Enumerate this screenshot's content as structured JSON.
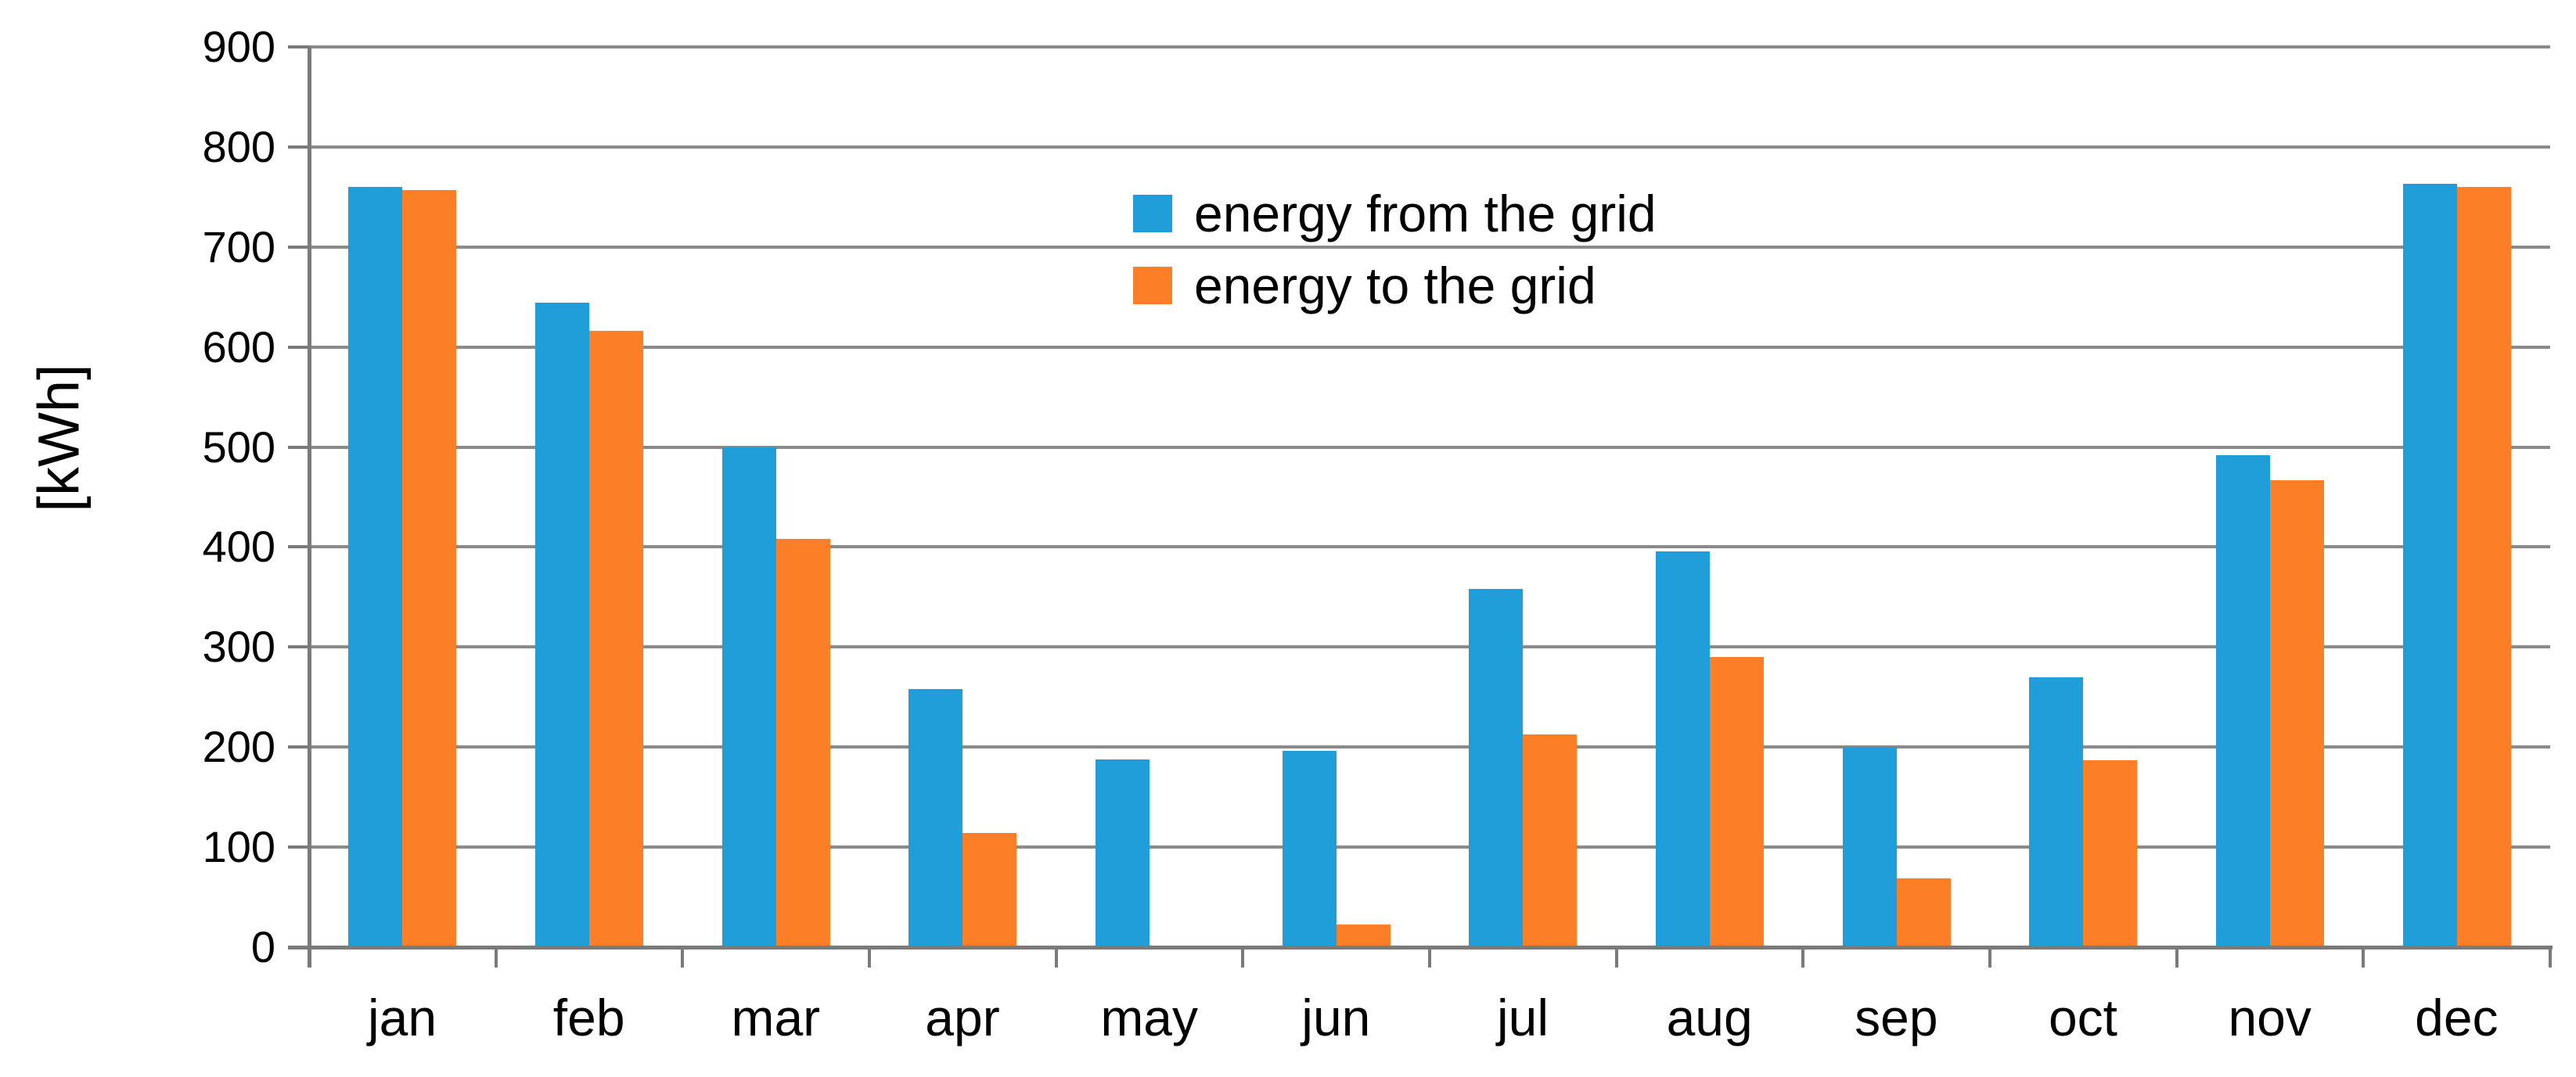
{
  "chart_data": {
    "type": "bar",
    "title": "",
    "xlabel": "",
    "ylabel": "[kWh]",
    "ylim": [
      0,
      900
    ],
    "ytick_step": 100,
    "yticks": [
      0,
      100,
      200,
      300,
      400,
      500,
      600,
      700,
      800,
      900
    ],
    "grid": "horizontal",
    "legend_position": "top-center-inside",
    "categories": [
      "jan",
      "feb",
      "mar",
      "apr",
      "may",
      "jun",
      "jul",
      "aug",
      "sep",
      "oct",
      "nov",
      "dec"
    ],
    "series": [
      {
        "name": "energy from the grid",
        "color": "#1f9ed9",
        "values": [
          760,
          644,
          500,
          258,
          188,
          196,
          358,
          396,
          200,
          270,
          492,
          763
        ]
      },
      {
        "name": "energy to the grid",
        "color": "#fc7e27",
        "values": [
          757,
          616,
          408,
          114,
          0,
          23,
          213,
          290,
          69,
          187,
          467,
          760
        ]
      }
    ],
    "colors": {
      "gridline": "#8a8a8a",
      "axis": "#7a7a7a",
      "text": "#000000"
    }
  }
}
